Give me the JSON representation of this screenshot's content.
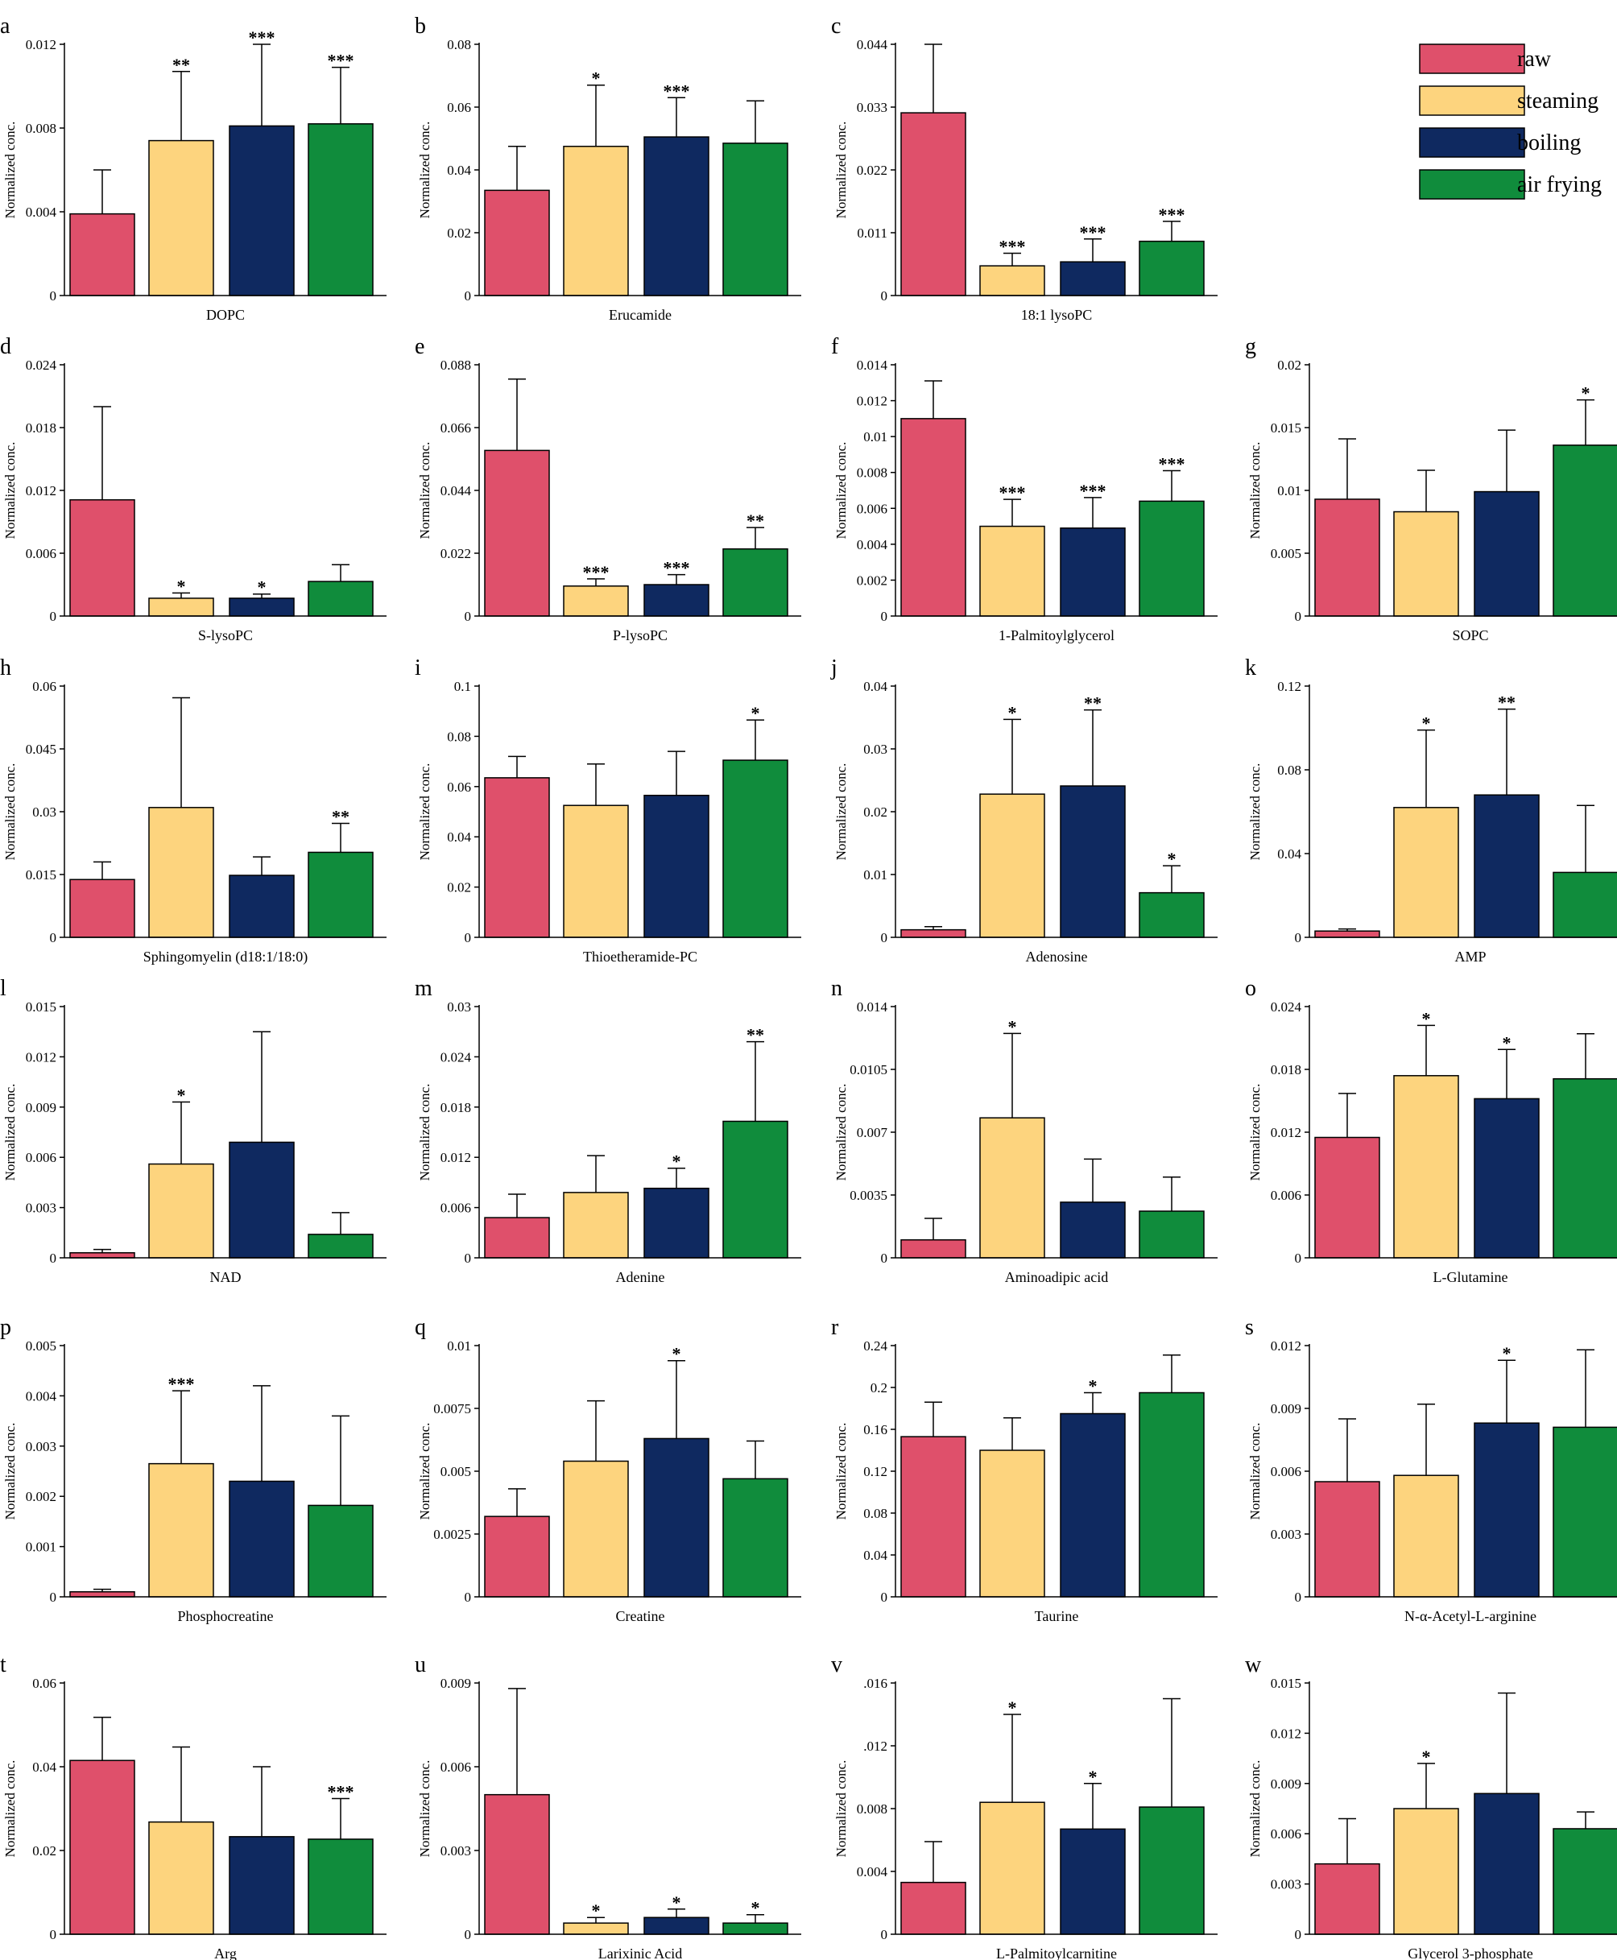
{
  "legend": {
    "position": "top-right",
    "items": [
      {
        "label": "raw",
        "color": "#df506b"
      },
      {
        "label": "steaming",
        "color": "#fdd47e"
      },
      {
        "label": "boiling",
        "color": "#0f2960"
      },
      {
        "label": "air frying",
        "color": "#108c3c"
      }
    ]
  },
  "y_axis_label": "Normalized conc.",
  "chart_data": [
    {
      "panel": "a",
      "type": "bar",
      "xlabel": "DOPC",
      "ylabel": "Normalized conc.",
      "ylim": [
        0,
        0.012
      ],
      "yticks": [
        "0",
        "0.004",
        "0.008",
        "0.012"
      ],
      "categories": [
        "raw",
        "steaming",
        "boiling",
        "air frying"
      ],
      "values": [
        0.0039,
        0.0074,
        0.0081,
        0.0082
      ],
      "errors": [
        0.0021,
        0.0033,
        0.0039,
        0.0027
      ],
      "sig": [
        "",
        "**",
        "***",
        "***"
      ]
    },
    {
      "panel": "b",
      "type": "bar",
      "xlabel": "Erucamide",
      "ylabel": "Normalized conc.",
      "ylim": [
        0,
        0.08
      ],
      "yticks": [
        "0",
        "0.02",
        "0.04",
        "0.06",
        "0.08"
      ],
      "categories": [
        "raw",
        "steaming",
        "boiling",
        "air frying"
      ],
      "values": [
        0.0335,
        0.0475,
        0.0505,
        0.0485
      ],
      "errors": [
        0.014,
        0.0195,
        0.0125,
        0.0135
      ],
      "sig": [
        "",
        "*",
        "***",
        ""
      ]
    },
    {
      "panel": "c",
      "type": "bar",
      "xlabel": "18:1 lysoPC",
      "ylabel": "Normalized conc.",
      "ylim": [
        0,
        0.044
      ],
      "yticks": [
        "0",
        "0.011",
        "0.022",
        "0.033",
        "0.044"
      ],
      "categories": [
        "raw",
        "steaming",
        "boiling",
        "air frying"
      ],
      "values": [
        0.032,
        0.0052,
        0.0059,
        0.0095
      ],
      "errors": [
        0.012,
        0.0022,
        0.004,
        0.0035
      ],
      "sig": [
        "",
        "***",
        "***",
        "***"
      ]
    },
    {
      "panel": "d",
      "type": "bar",
      "xlabel": "S-lysoPC",
      "ylabel": "Normalized conc.",
      "ylim": [
        0,
        0.024
      ],
      "yticks": [
        "0",
        "0.006",
        "0.012",
        "0.018",
        "0.024"
      ],
      "categories": [
        "raw",
        "steaming",
        "boiling",
        "air frying"
      ],
      "values": [
        0.0111,
        0.0017,
        0.0017,
        0.0033
      ],
      "errors": [
        0.0089,
        0.0005,
        0.0004,
        0.0016
      ],
      "sig": [
        "",
        "*",
        "*",
        ""
      ]
    },
    {
      "panel": "e",
      "type": "bar",
      "xlabel": "P-lysoPC",
      "ylabel": "Normalized conc.",
      "ylim": [
        0,
        0.088
      ],
      "yticks": [
        "0",
        "0.022",
        "0.044",
        "0.066",
        "0.088"
      ],
      "categories": [
        "raw",
        "steaming",
        "boiling",
        "air frying"
      ],
      "values": [
        0.058,
        0.0105,
        0.011,
        0.0235
      ],
      "errors": [
        0.025,
        0.0025,
        0.0035,
        0.0075
      ],
      "sig": [
        "",
        "***",
        "***",
        "**"
      ]
    },
    {
      "panel": "f",
      "type": "bar",
      "xlabel": "1-Palmitoylglycerol",
      "ylabel": "Normalized conc.",
      "ylim": [
        0,
        0.014
      ],
      "yticks": [
        "0",
        "0.002",
        "0.004",
        "0.006",
        "0.008",
        "0.01",
        "0.012",
        "0.014"
      ],
      "categories": [
        "raw",
        "steaming",
        "boiling",
        "air frying"
      ],
      "values": [
        0.011,
        0.005,
        0.0049,
        0.0064
      ],
      "errors": [
        0.0021,
        0.0015,
        0.0017,
        0.0017
      ],
      "sig": [
        "",
        "***",
        "***",
        "***"
      ]
    },
    {
      "panel": "g",
      "type": "bar",
      "xlabel": "SOPC",
      "ylabel": "Normalized conc.",
      "ylim": [
        0,
        0.02
      ],
      "yticks": [
        "0",
        "0.005",
        "0.01",
        "0.015",
        "0.02"
      ],
      "categories": [
        "raw",
        "steaming",
        "boiling",
        "air frying"
      ],
      "values": [
        0.0093,
        0.0083,
        0.0099,
        0.0136
      ],
      "errors": [
        0.0048,
        0.0033,
        0.0049,
        0.0036
      ],
      "sig": [
        "",
        "",
        "",
        "*"
      ]
    },
    {
      "panel": "h",
      "type": "bar",
      "xlabel": "Sphingomyelin (d18:1/18:0)",
      "ylabel": "Normalized conc.",
      "ylim": [
        0,
        0.06
      ],
      "yticks": [
        "0",
        "0.015",
        "0.03",
        "0.045",
        "0.06"
      ],
      "categories": [
        "raw",
        "steaming",
        "boiling",
        "air frying"
      ],
      "values": [
        0.0138,
        0.031,
        0.0148,
        0.0203
      ],
      "errors": [
        0.0042,
        0.0262,
        0.0044,
        0.0069
      ],
      "sig": [
        "",
        "",
        "",
        "**"
      ]
    },
    {
      "panel": "i",
      "type": "bar",
      "xlabel": "Thioetheramide-PC",
      "ylabel": "Normalized conc.",
      "ylim": [
        0,
        0.1
      ],
      "yticks": [
        "0",
        "0.02",
        "0.04",
        "0.06",
        "0.08",
        "0.1"
      ],
      "categories": [
        "raw",
        "steaming",
        "boiling",
        "air frying"
      ],
      "values": [
        0.0635,
        0.0525,
        0.0565,
        0.0705
      ],
      "errors": [
        0.0085,
        0.0165,
        0.0175,
        0.016
      ],
      "sig": [
        "",
        "",
        "",
        "*"
      ]
    },
    {
      "panel": "j",
      "type": "bar",
      "xlabel": "Adenosine",
      "ylabel": "Normalized conc.",
      "ylim": [
        0,
        0.04
      ],
      "yticks": [
        "0",
        "0.01",
        "0.02",
        "0.03",
        "0.04"
      ],
      "categories": [
        "raw",
        "steaming",
        "boiling",
        "air frying"
      ],
      "values": [
        0.0012,
        0.0228,
        0.0241,
        0.0071
      ],
      "errors": [
        0.0005,
        0.0119,
        0.0121,
        0.0043
      ],
      "sig": [
        "",
        "*",
        "**",
        "*"
      ]
    },
    {
      "panel": "k",
      "type": "bar",
      "xlabel": "AMP",
      "ylabel": "Normalized conc.",
      "ylim": [
        0,
        0.12
      ],
      "yticks": [
        "0",
        "0.04",
        "0.08",
        "0.12"
      ],
      "categories": [
        "raw",
        "steaming",
        "boiling",
        "air frying"
      ],
      "values": [
        0.003,
        0.062,
        0.068,
        0.031
      ],
      "errors": [
        0.001,
        0.037,
        0.041,
        0.032
      ],
      "sig": [
        "",
        "*",
        "**",
        ""
      ]
    },
    {
      "panel": "l",
      "type": "bar",
      "xlabel": "NAD",
      "ylabel": "Normalized conc.",
      "ylim": [
        0,
        0.015
      ],
      "yticks": [
        "0",
        "0.003",
        "0.006",
        "0.009",
        "0.012",
        "0.015"
      ],
      "categories": [
        "raw",
        "steaming",
        "boiling",
        "air frying"
      ],
      "values": [
        0.0003,
        0.0056,
        0.0069,
        0.0014
      ],
      "errors": [
        0.0002,
        0.0037,
        0.0066,
        0.0013
      ],
      "sig": [
        "",
        "*",
        "",
        ""
      ]
    },
    {
      "panel": "m",
      "type": "bar",
      "xlabel": "Adenine",
      "ylabel": "Normalized conc.",
      "ylim": [
        0,
        0.03
      ],
      "yticks": [
        "0",
        "0.006",
        "0.012",
        "0.018",
        "0.024",
        "0.03"
      ],
      "categories": [
        "raw",
        "steaming",
        "boiling",
        "air frying"
      ],
      "values": [
        0.0048,
        0.0078,
        0.0083,
        0.0163
      ],
      "errors": [
        0.0028,
        0.0044,
        0.0024,
        0.0095
      ],
      "sig": [
        "",
        "",
        "*",
        "**"
      ]
    },
    {
      "panel": "n",
      "type": "bar",
      "xlabel": "Aminoadipic acid",
      "ylabel": "Normalized conc.",
      "ylim": [
        0,
        0.014
      ],
      "yticks": [
        "0",
        "0.0035",
        "0.007",
        "0.0105",
        "0.014"
      ],
      "categories": [
        "raw",
        "steaming",
        "boiling",
        "air frying"
      ],
      "values": [
        0.001,
        0.0078,
        0.0031,
        0.0026
      ],
      "errors": [
        0.0012,
        0.0047,
        0.0024,
        0.0019
      ],
      "sig": [
        "",
        "*",
        "",
        ""
      ]
    },
    {
      "panel": "o",
      "type": "bar",
      "xlabel": "L-Glutamine",
      "ylabel": "Normalized conc.",
      "ylim": [
        0,
        0.024
      ],
      "yticks": [
        "0",
        "0.006",
        "0.012",
        "0.018",
        "0.024"
      ],
      "categories": [
        "raw",
        "steaming",
        "boiling",
        "air frying"
      ],
      "values": [
        0.0115,
        0.0174,
        0.0152,
        0.0171
      ],
      "errors": [
        0.0042,
        0.0048,
        0.0047,
        0.0043
      ],
      "sig": [
        "",
        "*",
        "*",
        ""
      ]
    },
    {
      "panel": "p",
      "type": "bar",
      "xlabel": "Phosphocreatine",
      "ylabel": "Normalized conc.",
      "ylim": [
        0,
        0.005
      ],
      "yticks": [
        "0",
        "0.001",
        "0.002",
        "0.003",
        "0.004",
        "0.005"
      ],
      "categories": [
        "raw",
        "steaming",
        "boiling",
        "air frying"
      ],
      "values": [
        0.0001,
        0.00265,
        0.0023,
        0.00182
      ],
      "errors": [
        5e-05,
        0.00145,
        0.0019,
        0.00178
      ],
      "sig": [
        "",
        "***",
        "",
        ""
      ]
    },
    {
      "panel": "q",
      "type": "bar",
      "xlabel": "Creatine",
      "ylabel": "Normalized conc.",
      "ylim": [
        0,
        0.01
      ],
      "yticks": [
        "0",
        "0.0025",
        "0.005",
        "0.0075",
        "0.01"
      ],
      "categories": [
        "raw",
        "steaming",
        "boiling",
        "air frying"
      ],
      "values": [
        0.0032,
        0.0054,
        0.0063,
        0.0047
      ],
      "errors": [
        0.0011,
        0.0024,
        0.0031,
        0.0015
      ],
      "sig": [
        "",
        "",
        "*",
        ""
      ]
    },
    {
      "panel": "r",
      "type": "bar",
      "xlabel": "Taurine",
      "ylabel": "Normalized conc.",
      "ylim": [
        0,
        0.24
      ],
      "yticks": [
        "0",
        "0.04",
        "0.08",
        "0.12",
        "0.16",
        "0.2",
        "0.24"
      ],
      "categories": [
        "raw",
        "steaming",
        "boiling",
        "air frying"
      ],
      "values": [
        0.153,
        0.14,
        0.175,
        0.195
      ],
      "errors": [
        0.033,
        0.031,
        0.02,
        0.036
      ],
      "sig": [
        "",
        "",
        "*",
        ""
      ]
    },
    {
      "panel": "s",
      "type": "bar",
      "xlabel": "N-α-Acetyl-L-arginine",
      "ylabel": "Normalized conc.",
      "ylim": [
        0,
        0.012
      ],
      "yticks": [
        "0",
        "0.003",
        "0.006",
        "0.009",
        "0.012"
      ],
      "categories": [
        "raw",
        "steaming",
        "boiling",
        "air frying"
      ],
      "values": [
        0.0055,
        0.0058,
        0.0083,
        0.0081
      ],
      "errors": [
        0.003,
        0.0034,
        0.003,
        0.0037
      ],
      "sig": [
        "",
        "",
        "*",
        ""
      ]
    },
    {
      "panel": "t",
      "type": "bar",
      "xlabel": "Arg",
      "ylabel": "Normalized conc.",
      "ylim": [
        0,
        0.06
      ],
      "yticks": [
        "0",
        "0.02",
        "0.04",
        "0.06"
      ],
      "categories": [
        "raw",
        "steaming",
        "boiling",
        "air frying"
      ],
      "values": [
        0.0415,
        0.0268,
        0.0233,
        0.0227
      ],
      "errors": [
        0.0103,
        0.0179,
        0.0167,
        0.0097
      ],
      "sig": [
        "",
        "",
        "",
        "***"
      ]
    },
    {
      "panel": "u",
      "type": "bar",
      "xlabel": "Larixinic Acid",
      "ylabel": "Normalized conc.",
      "ylim": [
        0,
        0.009
      ],
      "yticks": [
        "0",
        "0.003",
        "0.006",
        "0.009"
      ],
      "categories": [
        "raw",
        "steaming",
        "boiling",
        "air frying"
      ],
      "values": [
        0.005,
        0.0004,
        0.0006,
        0.0004
      ],
      "errors": [
        0.0038,
        0.0002,
        0.0003,
        0.0003
      ],
      "sig": [
        "",
        "*",
        "*",
        "*"
      ]
    },
    {
      "panel": "v",
      "type": "bar",
      "xlabel": "L-Palmitoylcarnitine",
      "ylabel": "Normalized conc.",
      "ylim": [
        0,
        0.016
      ],
      "yticks": [
        "0",
        "0.004",
        "0.008",
        ".012",
        ".016"
      ],
      "categories": [
        "raw",
        "steaming",
        "boiling",
        "air frying"
      ],
      "values": [
        0.0033,
        0.0084,
        0.0067,
        0.0081
      ],
      "errors": [
        0.0026,
        0.0056,
        0.0029,
        0.0069
      ],
      "sig": [
        "",
        "*",
        "*",
        ""
      ]
    },
    {
      "panel": "w",
      "type": "bar",
      "xlabel": "Glycerol 3-phosphate",
      "ylabel": "Normalized conc.",
      "ylim": [
        0,
        0.015
      ],
      "yticks": [
        "0",
        "0.003",
        "0.006",
        "0.009",
        "0.012",
        "0.015"
      ],
      "categories": [
        "raw",
        "steaming",
        "boiling",
        "air frying"
      ],
      "values": [
        0.0042,
        0.0075,
        0.0084,
        0.0063
      ],
      "errors": [
        0.0027,
        0.0027,
        0.006,
        0.001
      ],
      "sig": [
        "",
        "*",
        "",
        ""
      ]
    }
  ]
}
